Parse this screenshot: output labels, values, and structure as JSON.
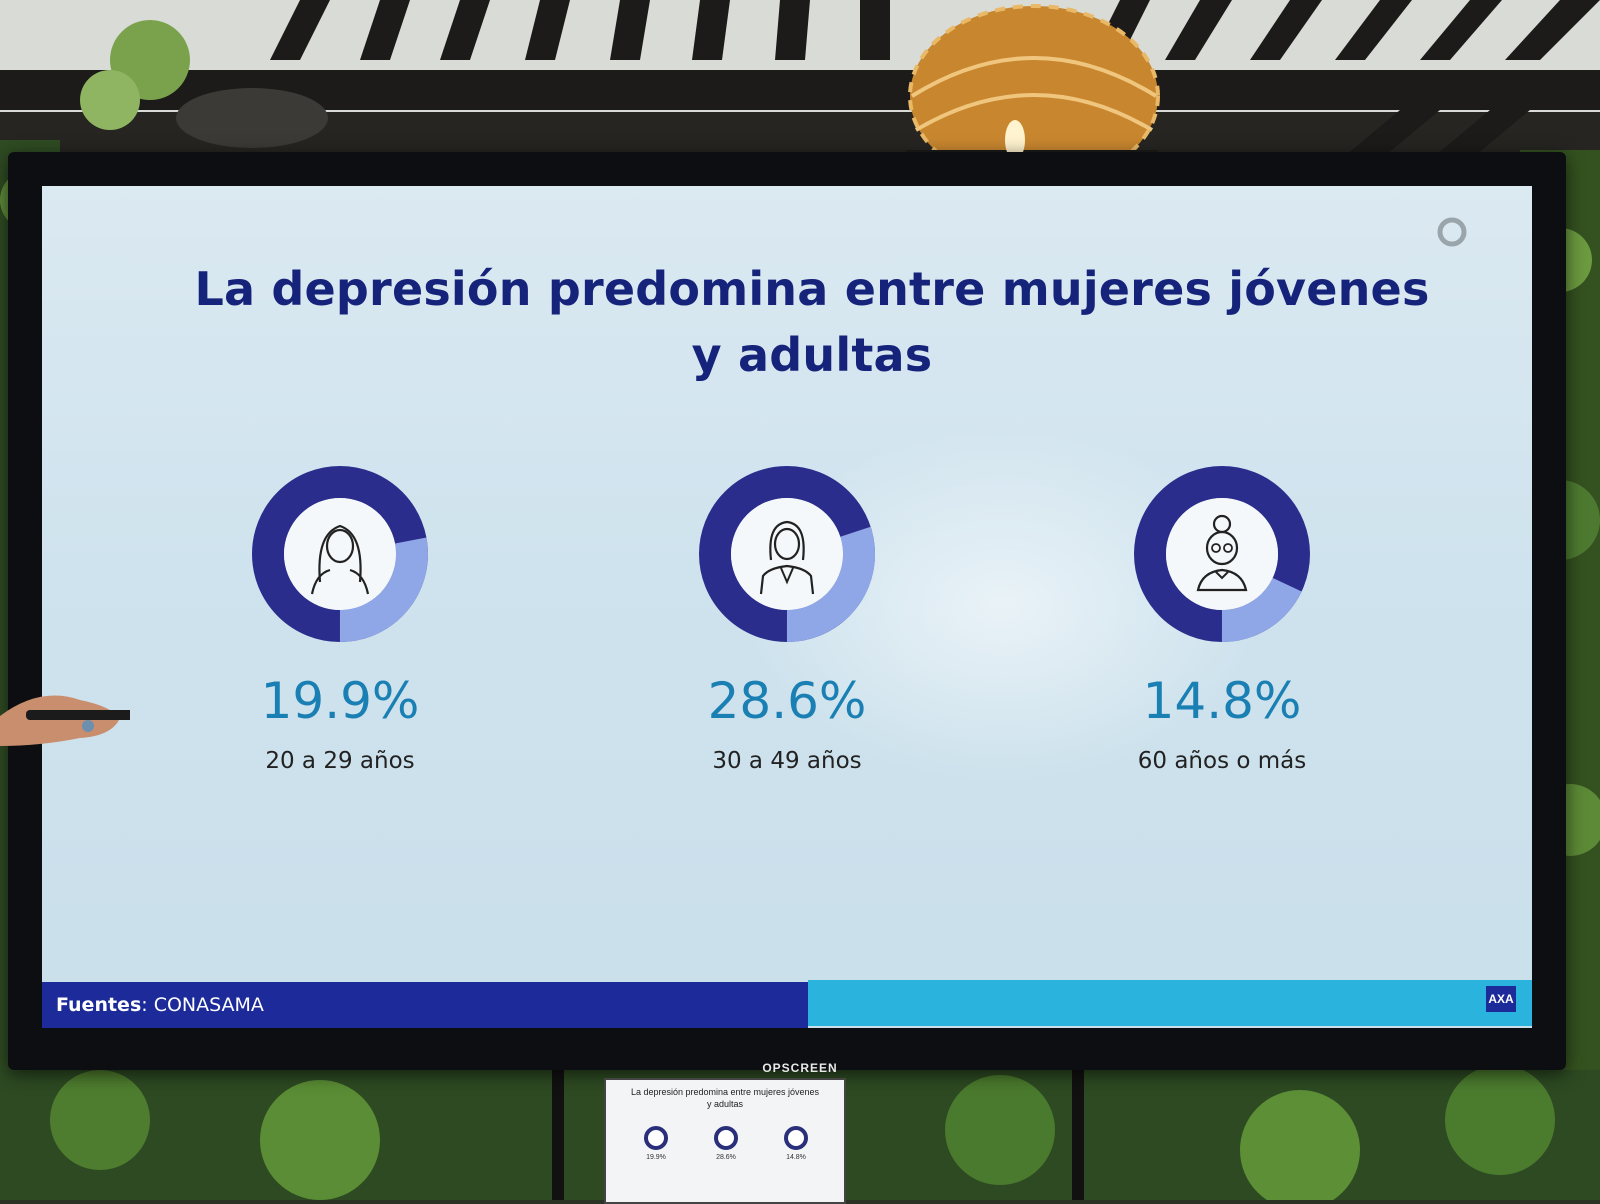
{
  "slide": {
    "title_line1": "La depresión predomina entre mujeres jóvenes",
    "title_line2": "y adultas",
    "stats": [
      {
        "percent": "19.9%",
        "age_range": "20 a 29 años",
        "value": 19.9,
        "icon": "young-woman-icon"
      },
      {
        "percent": "28.6%",
        "age_range": "30 a 49 años",
        "value": 28.6,
        "icon": "adult-woman-icon"
      },
      {
        "percent": "14.8%",
        "age_range": "60 años o más",
        "value": 14.8,
        "icon": "elderly-woman-icon"
      }
    ],
    "sources_label": "Fuentes",
    "sources_value": ": CONASAMA",
    "logo": "AXA"
  },
  "monitor": {
    "brand": "OPSCREEN"
  },
  "small_monitor": {
    "title_line1": "La depresión predomina entre mujeres jóvenes",
    "title_line2": "y adultas",
    "stats": [
      {
        "percent": "19.9%"
      },
      {
        "percent": "28.6%"
      },
      {
        "percent": "14.8%"
      }
    ]
  },
  "colors": {
    "ring_dark": "#2a2d8c",
    "ring_light": "#8fa7e6",
    "title": "#16237a",
    "percent": "#1a7fb3",
    "footer_left": "#1d2b9a",
    "footer_right": "#2ab3dd"
  }
}
